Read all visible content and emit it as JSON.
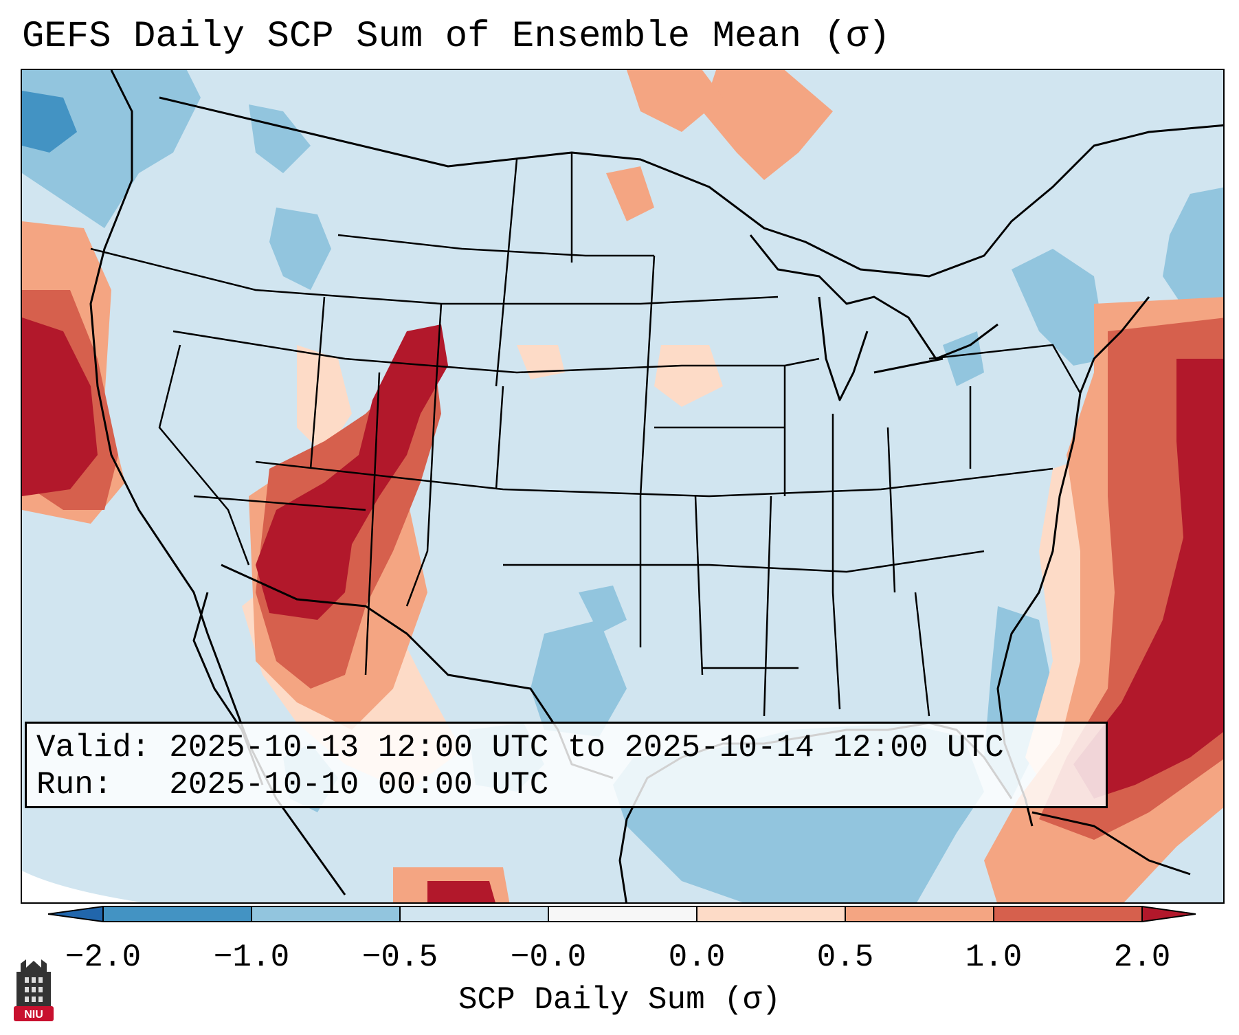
{
  "title": "GEFS Daily SCP Sum of Ensemble Mean (σ)",
  "info": {
    "valid_line": "Valid: 2025-10-13 12:00 UTC to 2025-10-14 12:00 UTC",
    "run_line": "Run:   2025-10-10 00:00 UTC"
  },
  "colorbar": {
    "label": "SCP Daily Sum (σ)",
    "ticks": [
      "−2.0",
      "−1.0",
      "−0.5",
      "−0.0",
      "0.0",
      "0.5",
      "1.0",
      "2.0"
    ],
    "colors": [
      "#4393c3",
      "#92c5de",
      "#d1e5f0",
      "#f7f7f7",
      "#fddbc7",
      "#f4a582",
      "#d6604d",
      "#b2182b"
    ],
    "extend_low_color": "#2166ac",
    "extend_high_color": "#b2182b",
    "background_color": "#d1e5f0"
  },
  "logo": {
    "text": "NIU",
    "color": "#c8102e"
  }
}
